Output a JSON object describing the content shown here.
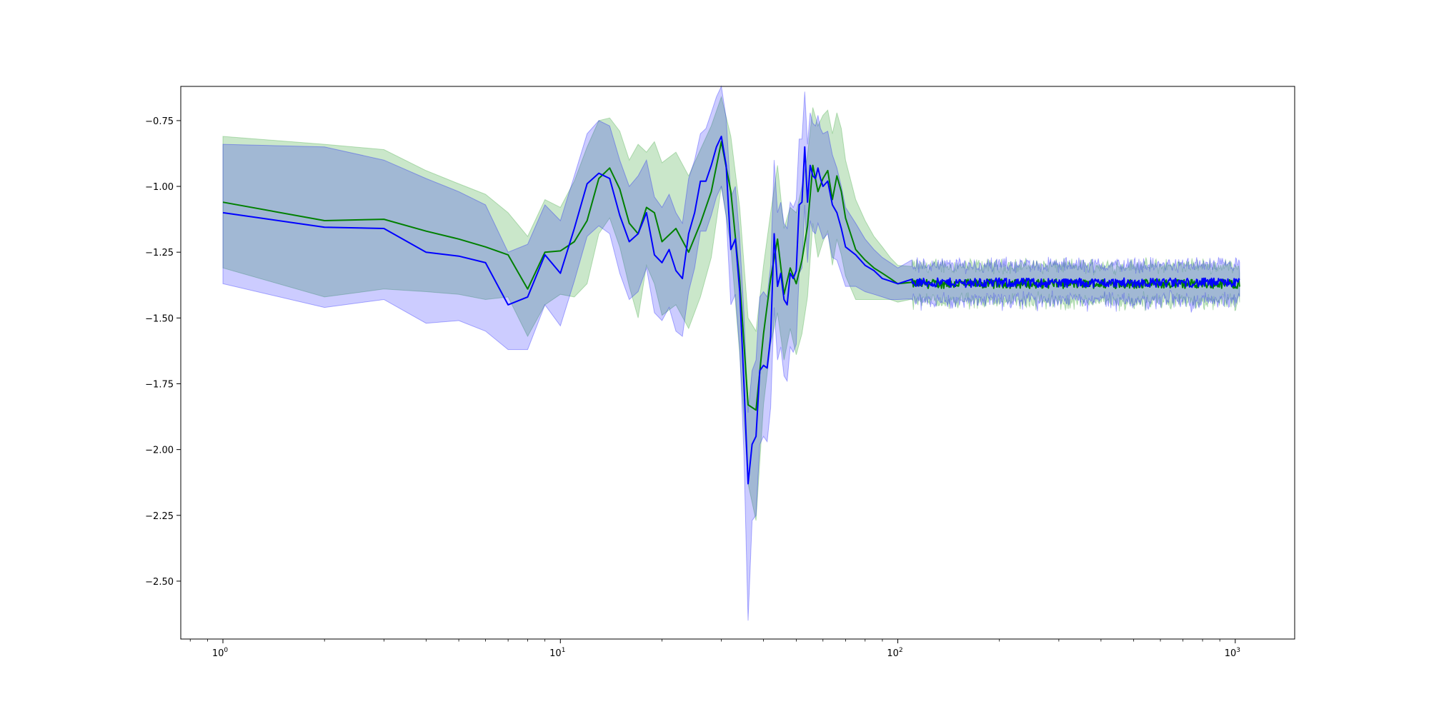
{
  "chart_data": {
    "type": "line",
    "title": "",
    "xlabel": "",
    "ylabel": "",
    "xscale": "log",
    "xlim": [
      0.75,
      1500
    ],
    "ylim": [
      -2.72,
      -0.62
    ],
    "grid": false,
    "legend": "none",
    "x_ticks": [
      {
        "base": "10",
        "exp": "0",
        "value": 1
      },
      {
        "base": "10",
        "exp": "1",
        "value": 10
      },
      {
        "base": "10",
        "exp": "2",
        "value": 100
      },
      {
        "base": "10",
        "exp": "3",
        "value": 1000
      }
    ],
    "y_ticks": [
      {
        "label": "−0.75",
        "value": -0.75
      },
      {
        "label": "−1.00",
        "value": -1.0
      },
      {
        "label": "−1.25",
        "value": -1.25
      },
      {
        "label": "−1.50",
        "value": -1.5
      },
      {
        "label": "−1.75",
        "value": -1.75
      },
      {
        "label": "−2.00",
        "value": -2.0
      },
      {
        "label": "−2.25",
        "value": -2.25
      },
      {
        "label": "−2.50",
        "value": -2.5
      }
    ],
    "tail": {
      "x_start": 110,
      "x_end": 1030,
      "level": -1.37,
      "band_half_width": 0.05
    },
    "series": [
      {
        "color": "#008000",
        "band_color": "#2ca02c",
        "x": [
          1,
          2,
          3,
          4,
          5,
          6,
          7,
          8,
          9,
          10,
          11,
          12,
          13,
          14,
          15,
          16,
          17,
          18,
          19,
          20,
          22,
          24,
          26,
          28,
          30,
          32,
          34,
          36,
          38,
          40,
          42,
          44,
          46,
          48,
          50,
          52,
          54,
          56,
          58,
          60,
          62,
          64,
          66,
          68,
          70,
          75,
          80,
          85,
          90,
          95,
          100
        ],
        "y": [
          -1.06,
          -1.13,
          -1.125,
          -1.17,
          -1.2,
          -1.23,
          -1.26,
          -1.39,
          -1.25,
          -1.245,
          -1.21,
          -1.13,
          -0.97,
          -0.93,
          -1.01,
          -1.14,
          -1.18,
          -1.08,
          -1.1,
          -1.21,
          -1.16,
          -1.25,
          -1.14,
          -1.02,
          -0.83,
          -1.02,
          -1.36,
          -1.83,
          -1.85,
          -1.56,
          -1.35,
          -1.2,
          -1.41,
          -1.31,
          -1.37,
          -1.28,
          -1.15,
          -0.92,
          -1.02,
          -0.97,
          -0.94,
          -1.05,
          -0.96,
          -1.02,
          -1.12,
          -1.24,
          -1.28,
          -1.31,
          -1.33,
          -1.35,
          -1.37
        ],
        "upper": [
          -0.81,
          -0.84,
          -0.86,
          -0.94,
          -0.99,
          -1.03,
          -1.1,
          -1.19,
          -1.05,
          -1.08,
          -0.98,
          -0.85,
          -0.75,
          -0.74,
          -0.79,
          -0.9,
          -0.84,
          -0.87,
          -0.83,
          -0.91,
          -0.87,
          -0.96,
          -0.86,
          -0.77,
          -0.66,
          -0.81,
          -1.08,
          -1.5,
          -1.55,
          -1.3,
          -1.1,
          -0.92,
          -1.16,
          -1.08,
          -1.1,
          -1.0,
          -0.88,
          -0.7,
          -0.77,
          -0.73,
          -0.71,
          -0.8,
          -0.72,
          -0.78,
          -0.9,
          -1.05,
          -1.13,
          -1.19,
          -1.23,
          -1.27,
          -1.3
        ],
        "lower": [
          -1.31,
          -1.42,
          -1.39,
          -1.4,
          -1.41,
          -1.43,
          -1.42,
          -1.57,
          -1.45,
          -1.41,
          -1.42,
          -1.37,
          -1.18,
          -1.12,
          -1.23,
          -1.38,
          -1.5,
          -1.3,
          -1.37,
          -1.49,
          -1.45,
          -1.54,
          -1.42,
          -1.27,
          -1.0,
          -1.23,
          -1.64,
          -2.13,
          -2.27,
          -1.83,
          -1.6,
          -1.48,
          -1.66,
          -1.54,
          -1.64,
          -1.56,
          -1.42,
          -1.14,
          -1.27,
          -1.21,
          -1.17,
          -1.3,
          -1.2,
          -1.26,
          -1.34,
          -1.43,
          -1.43,
          -1.43,
          -1.43,
          -1.43,
          -1.44
        ]
      },
      {
        "color": "#0000ff",
        "band_color": "#0000ff",
        "x": [
          1,
          2,
          3,
          4,
          5,
          6,
          7,
          8,
          9,
          10,
          11,
          12,
          13,
          14,
          15,
          16,
          17,
          18,
          19,
          20,
          21,
          22,
          23,
          24,
          25,
          26,
          27,
          28,
          29,
          30,
          31,
          32,
          33,
          34,
          35,
          36,
          37,
          38,
          39,
          40,
          41,
          42,
          43,
          44,
          45,
          46,
          47,
          48,
          49,
          50,
          51,
          52,
          53,
          54,
          55,
          56,
          57,
          58,
          59,
          60,
          62,
          64,
          66,
          68,
          70,
          75,
          80,
          85,
          90,
          95,
          100
        ],
        "y": [
          -1.1,
          -1.155,
          -1.16,
          -1.25,
          -1.265,
          -1.29,
          -1.45,
          -1.42,
          -1.26,
          -1.33,
          -1.16,
          -0.99,
          -0.95,
          -0.97,
          -1.11,
          -1.21,
          -1.18,
          -1.1,
          -1.26,
          -1.29,
          -1.24,
          -1.32,
          -1.35,
          -1.18,
          -1.1,
          -0.98,
          -0.98,
          -0.92,
          -0.85,
          -0.81,
          -0.92,
          -1.24,
          -1.2,
          -1.4,
          -1.75,
          -2.13,
          -1.98,
          -1.95,
          -1.7,
          -1.68,
          -1.69,
          -1.57,
          -1.18,
          -1.38,
          -1.33,
          -1.43,
          -1.45,
          -1.33,
          -1.35,
          -1.32,
          -1.07,
          -1.06,
          -0.85,
          -1.06,
          -0.92,
          -0.96,
          -0.97,
          -0.93,
          -0.97,
          -1.0,
          -0.98,
          -1.07,
          -1.1,
          -1.16,
          -1.23,
          -1.26,
          -1.3,
          -1.32,
          -1.35,
          -1.36,
          -1.37
        ],
        "upper": [
          -0.84,
          -0.85,
          -0.9,
          -0.97,
          -1.02,
          -1.07,
          -1.25,
          -1.22,
          -1.07,
          -1.13,
          -0.96,
          -0.8,
          -0.75,
          -0.77,
          -0.9,
          -1.0,
          -0.96,
          -0.9,
          -1.04,
          -1.08,
          -1.03,
          -1.1,
          -1.14,
          -0.97,
          -0.9,
          -0.8,
          -0.78,
          -0.72,
          -0.66,
          -0.62,
          -0.74,
          -1.04,
          -1.0,
          -1.2,
          -1.48,
          -1.86,
          -1.7,
          -1.66,
          -1.42,
          -1.4,
          -1.42,
          -1.3,
          -0.9,
          -1.1,
          -1.06,
          -1.14,
          -1.16,
          -1.06,
          -1.08,
          -1.05,
          -0.82,
          -0.82,
          -0.64,
          -0.84,
          -0.72,
          -0.76,
          -0.77,
          -0.73,
          -0.78,
          -0.8,
          -0.79,
          -0.88,
          -0.93,
          -1.0,
          -1.08,
          -1.14,
          -1.2,
          -1.24,
          -1.27,
          -1.29,
          -1.31
        ],
        "lower": [
          -1.37,
          -1.46,
          -1.43,
          -1.52,
          -1.51,
          -1.55,
          -1.62,
          -1.62,
          -1.45,
          -1.53,
          -1.36,
          -1.19,
          -1.15,
          -1.18,
          -1.33,
          -1.43,
          -1.4,
          -1.31,
          -1.48,
          -1.51,
          -1.46,
          -1.55,
          -1.57,
          -1.4,
          -1.31,
          -1.17,
          -1.17,
          -1.11,
          -1.04,
          -1.0,
          -1.11,
          -1.45,
          -1.41,
          -1.62,
          -2.02,
          -2.65,
          -2.27,
          -2.25,
          -1.98,
          -1.95,
          -1.97,
          -1.84,
          -1.46,
          -1.66,
          -1.61,
          -1.72,
          -1.74,
          -1.61,
          -1.63,
          -1.6,
          -1.33,
          -1.31,
          -1.07,
          -1.29,
          -1.13,
          -1.17,
          -1.18,
          -1.14,
          -1.17,
          -1.2,
          -1.18,
          -1.27,
          -1.28,
          -1.33,
          -1.38,
          -1.38,
          -1.4,
          -1.41,
          -1.42,
          -1.43,
          -1.43
        ]
      }
    ]
  }
}
